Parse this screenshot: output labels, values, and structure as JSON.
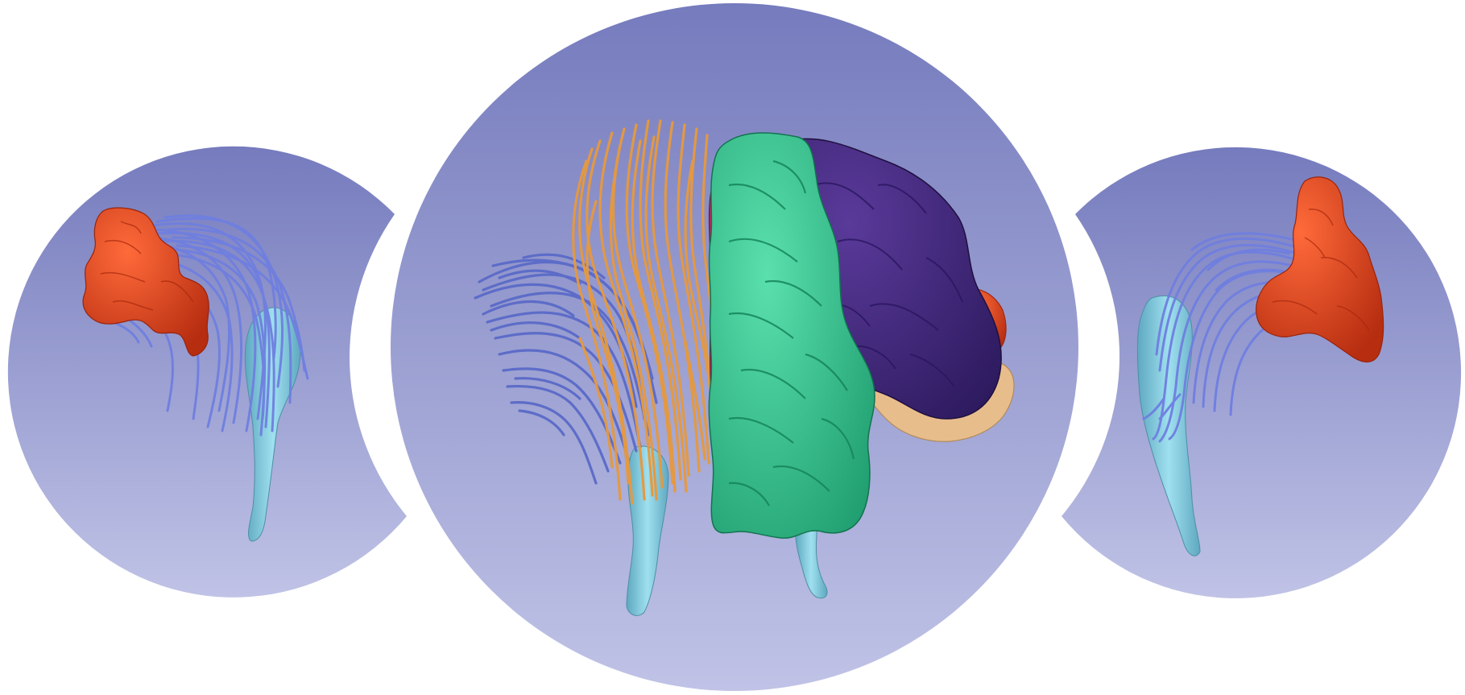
{
  "scene": {
    "background_color": "#ffffff",
    "viewport_gradient": {
      "top": "#757bbd",
      "bottom": "#c0c3e6"
    },
    "viewports": [
      {
        "id": "left-view",
        "role": "side-view"
      },
      {
        "id": "center-view",
        "role": "main-view"
      },
      {
        "id": "right-view",
        "role": "side-view"
      }
    ],
    "structures": [
      {
        "id": "red-lobe-mass",
        "color": "#e4401c"
      },
      {
        "id": "blue-fiber-bundle",
        "color": "#6878d6"
      },
      {
        "id": "orange-fiber-bundle",
        "color": "#e6993f"
      },
      {
        "id": "light-blue-stem",
        "color": "#86cde0"
      },
      {
        "id": "green-segment",
        "color": "#2ecb92"
      },
      {
        "id": "purple-segment",
        "color": "#43287e"
      },
      {
        "id": "tan-segment",
        "color": "#e8bd8c"
      },
      {
        "id": "magenta-segment",
        "color": "#c81a5a"
      }
    ]
  }
}
